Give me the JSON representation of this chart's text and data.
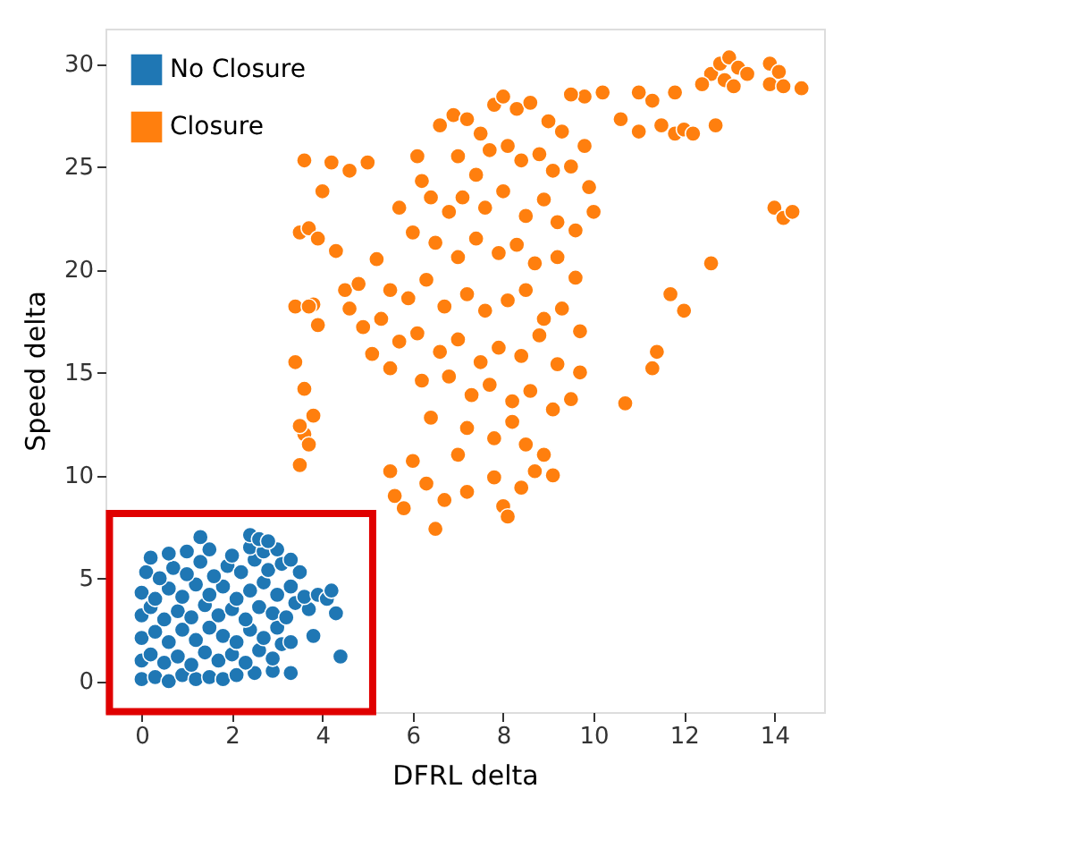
{
  "chart_data": {
    "type": "scatter",
    "xlabel": "DFRL delta",
    "ylabel": "Speed delta",
    "xlim": [
      -0.8,
      15.1
    ],
    "ylim": [
      -1.5,
      31.7
    ],
    "xticks": [
      0,
      2,
      4,
      6,
      8,
      10,
      12,
      14
    ],
    "yticks": [
      0,
      5,
      10,
      15,
      20,
      25,
      30
    ],
    "grid": false,
    "legend": "top left",
    "marker": "circle",
    "series": [
      {
        "name": "No Closure",
        "color": "#1f77b4",
        "x": [
          0.0,
          0.3,
          0.6,
          0.9,
          1.2,
          1.5,
          1.8,
          2.1,
          2.5,
          2.9,
          3.3,
          0.0,
          0.2,
          0.5,
          0.8,
          1.1,
          1.4,
          1.7,
          2.0,
          2.3,
          2.6,
          2.9,
          3.1,
          4.4,
          0.0,
          0.3,
          0.6,
          0.9,
          1.2,
          1.5,
          1.8,
          2.1,
          2.4,
          2.7,
          3.0,
          3.3,
          3.8,
          0.0,
          0.2,
          0.5,
          0.8,
          1.1,
          1.4,
          1.7,
          2.0,
          2.3,
          2.6,
          2.9,
          3.2,
          3.4,
          3.7,
          4.3,
          0.0,
          0.3,
          0.6,
          0.9,
          1.2,
          1.5,
          1.8,
          2.1,
          2.4,
          2.7,
          3.0,
          3.3,
          3.6,
          3.9,
          4.1,
          4.2,
          0.1,
          0.4,
          0.7,
          1.0,
          1.3,
          1.6,
          1.9,
          2.2,
          2.5,
          2.8,
          3.1,
          3.5,
          3.3,
          0.2,
          0.6,
          1.0,
          1.5,
          2.0,
          2.4,
          2.7,
          3.0,
          1.3,
          2.4,
          2.6,
          2.8
        ],
        "values": [
          0.1,
          0.2,
          0.0,
          0.3,
          0.1,
          0.2,
          0.1,
          0.3,
          0.4,
          0.5,
          0.4,
          1.0,
          1.3,
          0.9,
          1.2,
          0.8,
          1.4,
          1.0,
          1.3,
          0.9,
          1.5,
          1.1,
          1.8,
          1.2,
          2.1,
          2.4,
          1.9,
          2.5,
          2.0,
          2.6,
          2.2,
          1.9,
          2.5,
          2.1,
          2.6,
          1.9,
          2.2,
          3.2,
          3.6,
          3.0,
          3.4,
          3.1,
          3.7,
          3.2,
          3.5,
          3.0,
          3.6,
          3.3,
          3.1,
          3.8,
          3.5,
          3.3,
          4.3,
          4.0,
          4.5,
          4.1,
          4.7,
          4.2,
          4.6,
          4.0,
          4.4,
          4.8,
          4.2,
          4.6,
          4.1,
          4.2,
          4.0,
          4.4,
          5.3,
          5.0,
          5.5,
          5.2,
          5.8,
          5.1,
          5.6,
          5.3,
          5.9,
          5.4,
          5.7,
          5.3,
          5.9,
          6.0,
          6.2,
          6.3,
          6.4,
          6.1,
          6.5,
          6.3,
          6.4,
          7.0,
          7.1,
          6.9,
          6.8
        ]
      },
      {
        "name": "Closure",
        "color": "#ff7f0e",
        "x": [
          12.6,
          12.8,
          13.0,
          13.2,
          12.9,
          13.1,
          13.4,
          13.9,
          14.1,
          13.9,
          14.2,
          14.6,
          12.4,
          11.0,
          11.3,
          11.8,
          11.5,
          11.8,
          12.0,
          12.2,
          12.7,
          11.0,
          10.6,
          10.2,
          9.8,
          14.0,
          14.2,
          14.4,
          12.6,
          12.0,
          11.7,
          11.4,
          11.3,
          10.7,
          6.6,
          6.9,
          7.2,
          7.5,
          7.8,
          8.0,
          8.3,
          8.6,
          9.0,
          9.3,
          9.5,
          9.8,
          7.0,
          7.4,
          7.7,
          8.1,
          8.4,
          8.8,
          9.1,
          9.5,
          9.9,
          6.2,
          6.4,
          6.8,
          7.1,
          7.6,
          8.0,
          8.5,
          8.9,
          9.2,
          9.6,
          10.0,
          5.7,
          6.0,
          6.5,
          7.0,
          7.4,
          7.9,
          8.3,
          8.7,
          9.2,
          9.6,
          5.2,
          5.5,
          5.9,
          6.3,
          6.7,
          7.2,
          7.6,
          8.1,
          8.5,
          8.9,
          9.3,
          9.7,
          5.3,
          5.7,
          6.1,
          6.6,
          7.0,
          7.5,
          7.9,
          8.4,
          8.8,
          9.2,
          9.7,
          5.1,
          5.5,
          6.2,
          6.8,
          7.3,
          7.7,
          8.2,
          8.6,
          9.1,
          9.5,
          6.4,
          7.2,
          7.8,
          8.2,
          8.5,
          8.9,
          7.0,
          6.0,
          5.5,
          6.3,
          6.7,
          7.2,
          7.8,
          8.0,
          8.4,
          8.7,
          9.1,
          6.5,
          5.6,
          5.8,
          8.1,
          3.5,
          3.7,
          3.9,
          4.0,
          4.2,
          3.6,
          4.6,
          4.3,
          4.5,
          4.8,
          4.9,
          4.6,
          3.8,
          3.9,
          3.4,
          3.7,
          3.4,
          3.6,
          3.8,
          3.6,
          3.7,
          3.5,
          3.5,
          5.0,
          6.1
        ],
        "values": [
          29.5,
          30.0,
          30.3,
          29.8,
          29.2,
          28.9,
          29.5,
          30.0,
          29.6,
          29.0,
          28.9,
          28.8,
          29.0,
          28.6,
          28.2,
          28.6,
          27.0,
          26.6,
          26.8,
          26.6,
          27.0,
          26.7,
          27.3,
          28.6,
          28.4,
          23.0,
          22.5,
          22.8,
          20.3,
          18.0,
          18.8,
          16.0,
          15.2,
          13.5,
          27.0,
          27.5,
          27.3,
          26.6,
          28.0,
          28.4,
          27.8,
          28.1,
          27.2,
          26.7,
          28.5,
          26.0,
          25.5,
          24.6,
          25.8,
          26.0,
          25.3,
          25.6,
          24.8,
          25.0,
          24.0,
          24.3,
          23.5,
          22.8,
          23.5,
          23.0,
          23.8,
          22.6,
          23.4,
          22.3,
          21.9,
          22.8,
          23.0,
          21.8,
          21.3,
          20.6,
          21.5,
          20.8,
          21.2,
          20.3,
          20.6,
          19.6,
          20.5,
          19.0,
          18.6,
          19.5,
          18.2,
          18.8,
          18.0,
          18.5,
          19.0,
          17.6,
          18.1,
          17.0,
          17.6,
          16.5,
          16.9,
          16.0,
          16.6,
          15.5,
          16.2,
          15.8,
          16.8,
          15.4,
          15.0,
          15.9,
          15.2,
          14.6,
          14.8,
          13.9,
          14.4,
          13.6,
          14.1,
          13.2,
          13.7,
          12.8,
          12.3,
          11.8,
          12.6,
          11.5,
          11.0,
          11.0,
          10.7,
          10.2,
          9.6,
          8.8,
          9.2,
          9.9,
          8.5,
          9.4,
          10.2,
          10.0,
          7.4,
          9.0,
          8.4,
          8.0,
          21.8,
          22.0,
          21.5,
          23.8,
          25.2,
          25.3,
          24.8,
          20.9,
          19.0,
          19.3,
          17.2,
          18.1,
          18.3,
          17.3,
          18.2,
          18.2,
          15.5,
          14.2,
          12.9,
          12.0,
          11.5,
          12.4,
          10.5,
          25.2,
          25.5
        ]
      }
    ]
  }
}
